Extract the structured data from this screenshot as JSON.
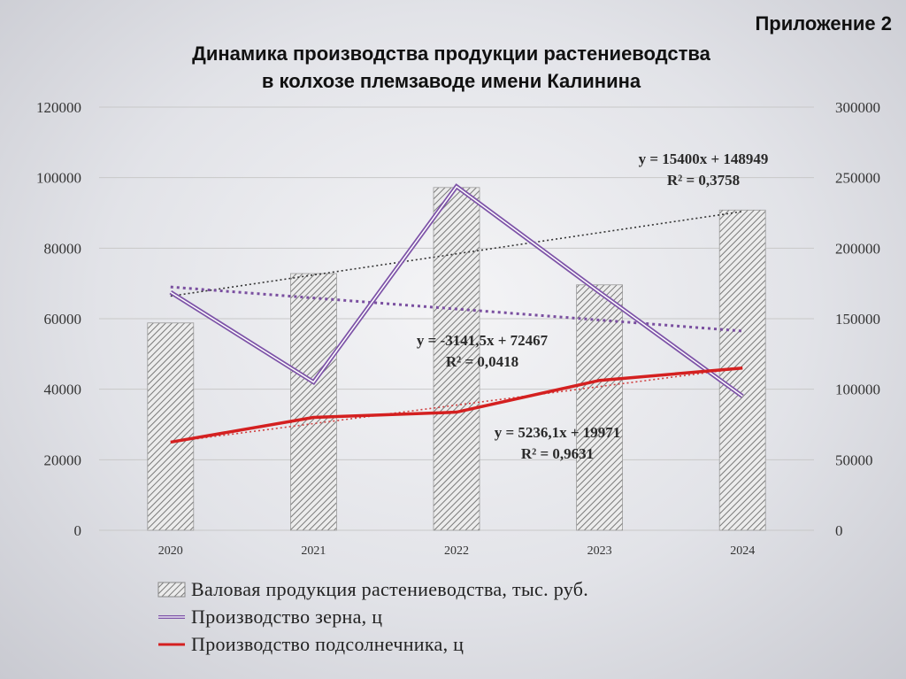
{
  "appendix": "Приложение 2",
  "title_line1": "Динамика производства продукции растениеводства",
  "title_line2": "в колхозе племзаводе имени Калинина",
  "chart_data": {
    "type": "bar",
    "categories": [
      "2020",
      "2021",
      "2022",
      "2023",
      "2024"
    ],
    "left_axis": {
      "ticks": [
        "0",
        "20000",
        "40000",
        "60000",
        "80000",
        "100000",
        "120000"
      ],
      "ylim": [
        0,
        120000
      ]
    },
    "right_axis": {
      "ticks": [
        "0",
        "50000",
        "100000",
        "150000",
        "200000",
        "250000",
        "300000"
      ],
      "ylim": [
        0,
        300000
      ]
    },
    "series": [
      {
        "name": "Валовая продукция растениеводства, тыс. руб.",
        "type": "bar",
        "axis": "right",
        "color": "#9a9a9a",
        "values": [
          147000,
          182000,
          243000,
          174000,
          227000
        ]
      },
      {
        "name": "Производство зерна, ц",
        "type": "line",
        "axis": "left",
        "color": "#7e54a8",
        "values": [
          67500,
          42000,
          97500,
          67500,
          38000
        ]
      },
      {
        "name": "Производство подсолнечника, ц",
        "type": "line",
        "axis": "left",
        "color": "#d42020",
        "values": [
          25000,
          32000,
          33500,
          42500,
          46000
        ]
      }
    ],
    "trendlines": [
      {
        "series": 0,
        "axis": "right",
        "color": "#333333",
        "equation": "y = 15400x + 148949",
        "r2": "R² = 0,3758",
        "start": 166000,
        "end": 226000
      },
      {
        "series": 1,
        "axis": "left",
        "color": "#7a4fa0",
        "equation": "y = -3141,5x + 72467",
        "r2": "R² = 0,0418",
        "start": 69000,
        "end": 56500
      },
      {
        "series": 2,
        "axis": "left",
        "color": "#d04040",
        "equation": "y = 5236,1x + 19971",
        "r2": "R² = 0,9631",
        "start": 25000,
        "end": 46000
      }
    ],
    "grid": true,
    "legend_position": "bottom"
  }
}
